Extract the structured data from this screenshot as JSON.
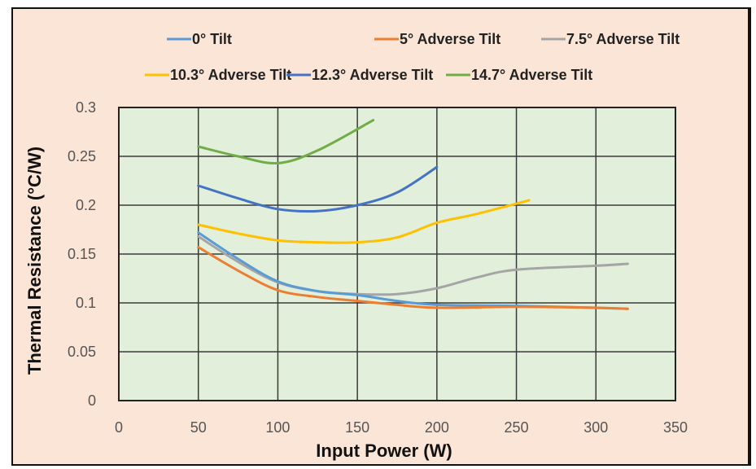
{
  "chart_data": {
    "type": "line",
    "title": "",
    "xlabel": "Input Power (W)",
    "ylabel": "Thermal Resistance (°C/W)",
    "xlim": [
      0,
      350
    ],
    "ylim": [
      0,
      0.3
    ],
    "x_ticks": [
      "0",
      "50",
      "100",
      "150",
      "200",
      "250",
      "300",
      "350"
    ],
    "y_ticks": [
      "0",
      "0.05",
      "0.1",
      "0.15",
      "0.2",
      "0.25",
      "0.3"
    ],
    "grid": true,
    "legend_position": "top",
    "plot_background": "#E2EFDA",
    "figure_background": "#FBE5D6",
    "series": [
      {
        "name": "0° Tilt",
        "color": "#5B9BD5",
        "x": [
          50,
          75,
          100,
          125,
          150,
          175,
          200,
          250,
          300,
          320
        ],
        "values": [
          0.172,
          0.145,
          0.122,
          0.112,
          0.108,
          0.102,
          0.098,
          0.097,
          0.095,
          0.094
        ]
      },
      {
        "name": "5° Adverse Tilt",
        "color": "#ED7D31",
        "x": [
          50,
          75,
          100,
          125,
          150,
          175,
          200,
          250,
          300,
          320
        ],
        "values": [
          0.157,
          0.133,
          0.113,
          0.106,
          0.102,
          0.098,
          0.095,
          0.096,
          0.095,
          0.094
        ]
      },
      {
        "name": "7.5° Adverse Tilt",
        "color": "#A5A5A5",
        "x": [
          50,
          75,
          100,
          125,
          150,
          175,
          200,
          225,
          250,
          300,
          320
        ],
        "values": [
          0.168,
          0.142,
          0.121,
          0.112,
          0.109,
          0.109,
          0.115,
          0.126,
          0.134,
          0.138,
          0.14
        ]
      },
      {
        "name": "10.3° Adverse Tilt",
        "color": "#FFC000",
        "x": [
          50,
          75,
          100,
          125,
          150,
          175,
          200,
          225,
          258
        ],
        "values": [
          0.18,
          0.171,
          0.164,
          0.162,
          0.162,
          0.167,
          0.182,
          0.191,
          0.205
        ]
      },
      {
        "name": "12.3° Adverse Tilt",
        "color": "#4472C4",
        "x": [
          50,
          75,
          100,
          125,
          150,
          175,
          200
        ],
        "values": [
          0.22,
          0.207,
          0.196,
          0.194,
          0.2,
          0.213,
          0.239
        ]
      },
      {
        "name": "14.7° Adverse Tilt",
        "color": "#70AD47",
        "x": [
          50,
          75,
          100,
          125,
          160
        ],
        "values": [
          0.26,
          0.25,
          0.243,
          0.256,
          0.287
        ]
      }
    ]
  }
}
